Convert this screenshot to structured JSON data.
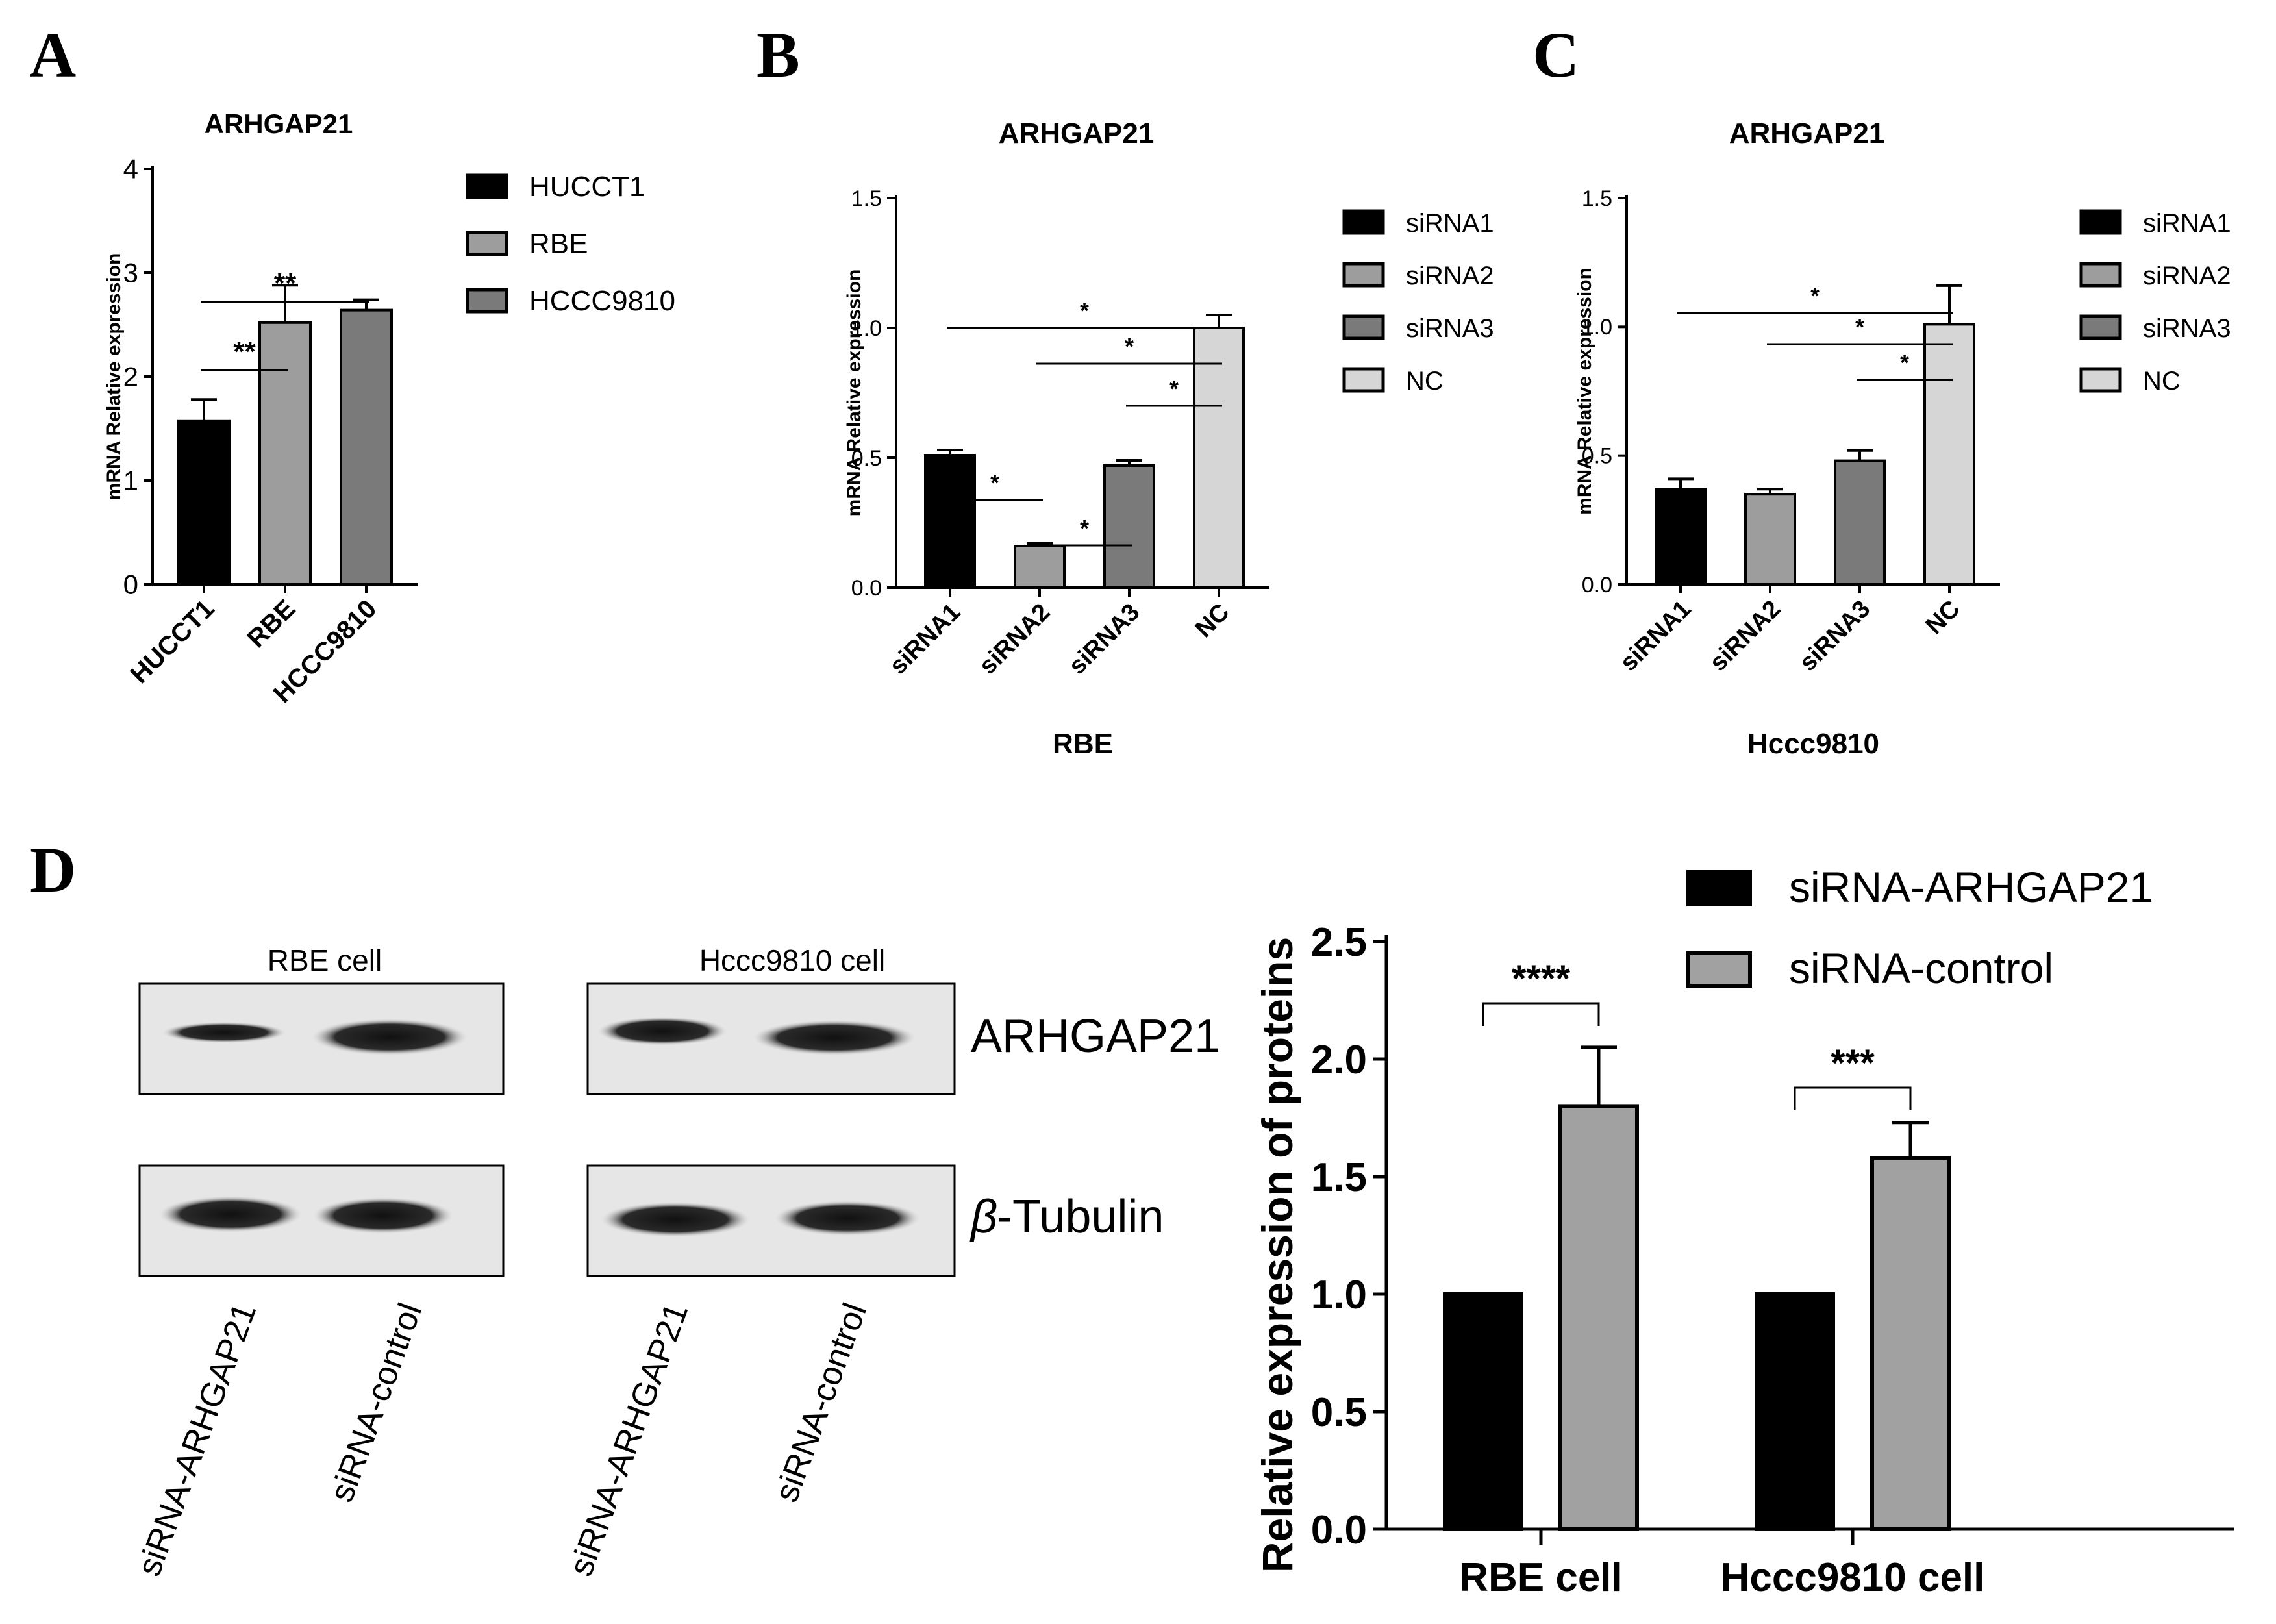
{
  "panels": {
    "a": "A",
    "b": "B",
    "c": "C",
    "d": "D"
  },
  "colors": {
    "black": "#000000",
    "mid_gray": "#9d9d9d",
    "dark_gray": "#7a7a7a",
    "light_gray": "#d6d6d6",
    "sirna_control_gray": "#a1a1a1"
  },
  "chart_data": [
    {
      "id": "A",
      "type": "bar",
      "title": "ARHGAP21",
      "xlabel": "",
      "ylabel": "mRNA Relative expression",
      "ylim": [
        0,
        4
      ],
      "yticks": [
        "0",
        "1",
        "2",
        "3",
        "4"
      ],
      "categories": [
        "HUCCT1",
        "RBE",
        "HCCC9810"
      ],
      "values": [
        1.57,
        2.52,
        2.64
      ],
      "errors": [
        0.21,
        0.36,
        0.1
      ],
      "legend": [
        "HUCCT1",
        "RBE",
        "HCCC9810"
      ],
      "legend_position": "right",
      "significance": [
        {
          "from": "HUCCT1",
          "to": "RBE",
          "label": "**"
        },
        {
          "from": "HUCCT1",
          "to": "HCCC9810",
          "label": "**"
        }
      ]
    },
    {
      "id": "B",
      "type": "bar",
      "title": "ARHGAP21",
      "xlabel": "RBE",
      "ylabel": "mRNA Relative expression",
      "ylim": [
        0,
        1.5
      ],
      "yticks": [
        "0.0",
        "0.5",
        "1.0",
        "1.5"
      ],
      "categories": [
        "siRNA1",
        "siRNA2",
        "siRNA3",
        "NC"
      ],
      "values": [
        0.51,
        0.16,
        0.47,
        1.0
      ],
      "errors": [
        0.02,
        0.01,
        0.02,
        0.05
      ],
      "legend": [
        "siRNA1",
        "siRNA2",
        "siRNA3",
        "NC"
      ],
      "legend_position": "right",
      "significance": [
        {
          "from": "siRNA1",
          "to": "siRNA2",
          "label": "*"
        },
        {
          "from": "siRNA2",
          "to": "siRNA3",
          "label": "*"
        },
        {
          "from": "siRNA3",
          "to": "NC",
          "label": "*"
        },
        {
          "from": "siRNA2",
          "to": "NC",
          "label": "*"
        },
        {
          "from": "siRNA1",
          "to": "NC",
          "label": "*"
        }
      ]
    },
    {
      "id": "C",
      "type": "bar",
      "title": "ARHGAP21",
      "xlabel": "Hccc9810",
      "ylabel": "mRNA Relative expression",
      "ylim": [
        0,
        1.5
      ],
      "yticks": [
        "0.0",
        "0.5",
        "1.0",
        "1.5"
      ],
      "categories": [
        "siRNA1",
        "siRNA2",
        "siRNA3",
        "NC"
      ],
      "values": [
        0.37,
        0.35,
        0.48,
        1.01
      ],
      "errors": [
        0.04,
        0.02,
        0.04,
        0.15
      ],
      "legend": [
        "siRNA1",
        "siRNA2",
        "siRNA3",
        "NC"
      ],
      "legend_position": "right",
      "significance": [
        {
          "from": "siRNA3",
          "to": "NC",
          "label": "*"
        },
        {
          "from": "siRNA2",
          "to": "NC",
          "label": "*"
        },
        {
          "from": "siRNA1",
          "to": "NC",
          "label": "*"
        }
      ]
    },
    {
      "id": "D",
      "type": "bar",
      "title": "",
      "xlabel": "",
      "ylabel": "Relative expression of proteins",
      "ylim": [
        0,
        2.5
      ],
      "yticks": [
        "0.0",
        "0.5",
        "1.0",
        "1.5",
        "2.0",
        "2.5"
      ],
      "categories": [
        "RBE cell",
        "Hccc9810 cell"
      ],
      "series": [
        {
          "name": "siRNA-ARHGAP21",
          "values": [
            1.0,
            1.0
          ],
          "errors": [
            0,
            0
          ]
        },
        {
          "name": "siRNA-control",
          "values": [
            1.8,
            1.58
          ],
          "errors": [
            0.25,
            0.15
          ]
        }
      ],
      "legend_position": "top-right",
      "significance": [
        {
          "category": "RBE cell",
          "label": "****"
        },
        {
          "category": "Hccc9810 cell",
          "label": "***"
        }
      ]
    }
  ],
  "blot": {
    "panel_titles": [
      "RBE cell",
      "Hccc9810 cell"
    ],
    "row_labels": [
      "ARHGAP21",
      "-Tubulin"
    ],
    "beta_symbol": "β",
    "lane_labels": [
      "siRNA-ARHGAP21",
      "siRNA-control",
      "siRNA-ARHGAP21",
      "siRNA-control"
    ]
  }
}
